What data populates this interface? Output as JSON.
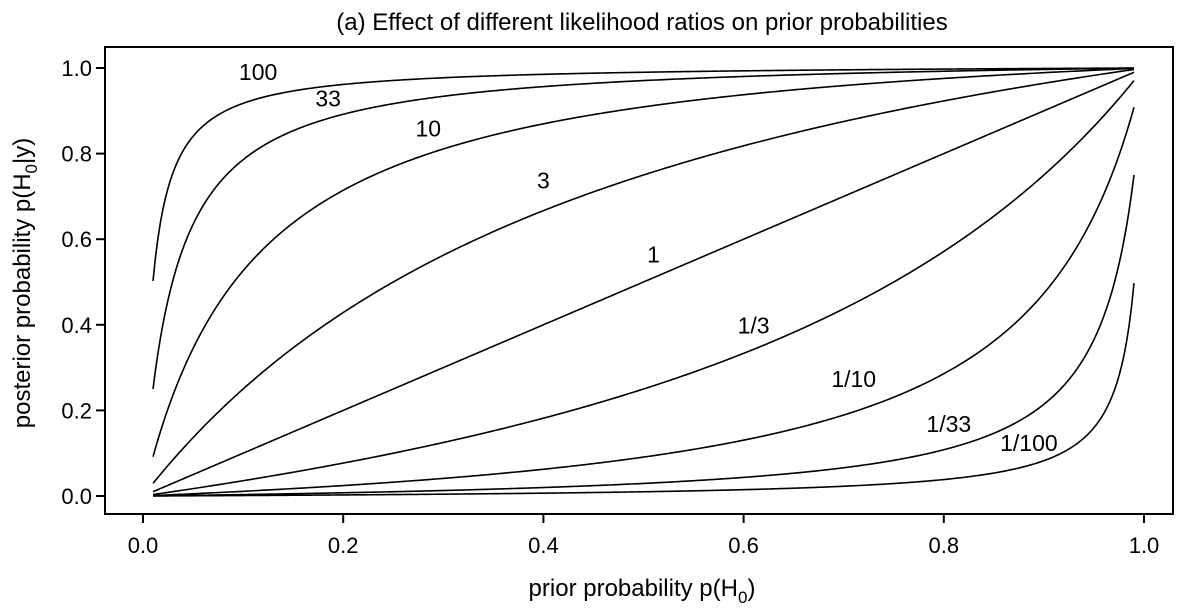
{
  "chart_data": {
    "type": "line",
    "title": "(a) Effect of different likelihood ratios on prior probabilities",
    "xlabel": {
      "main": "prior probability p(H",
      "sub": "0",
      "end": ")"
    },
    "ylabel": {
      "main": "posterior probability p(H",
      "sub": "0",
      "end": "|y)"
    },
    "xlim": [
      0.0,
      1.0
    ],
    "ylim": [
      0.0,
      1.0
    ],
    "x_ticks": [
      0.0,
      0.2,
      0.4,
      0.6,
      0.8,
      1.0
    ],
    "x_tick_labels": [
      "0.0",
      "0.2",
      "0.4",
      "0.6",
      "0.8",
      "1.0"
    ],
    "y_ticks": [
      0.0,
      0.2,
      0.4,
      0.6,
      0.8,
      1.0
    ],
    "y_tick_labels": [
      "0.0",
      "0.2",
      "0.4",
      "0.6",
      "0.8",
      "1.0"
    ],
    "x_range": [
      0.01,
      0.99
    ],
    "grid": false,
    "series": [
      {
        "name": "100",
        "ratio": 100,
        "label_at": [
          0.115,
          0.972
        ]
      },
      {
        "name": "33",
        "ratio": 33,
        "label_at": [
          0.185,
          0.91
        ]
      },
      {
        "name": "10",
        "ratio": 10,
        "label_at": [
          0.285,
          0.84
        ]
      },
      {
        "name": "3",
        "ratio": 3,
        "label_at": [
          0.4,
          0.718
        ]
      },
      {
        "name": "1",
        "ratio": 1,
        "label_at": [
          0.51,
          0.545
        ]
      },
      {
        "name": "1/3",
        "ratio": 0.3333,
        "label_at": [
          0.61,
          0.38
        ]
      },
      {
        "name": "1/10",
        "ratio": 0.1,
        "label_at": [
          0.71,
          0.255
        ]
      },
      {
        "name": "1/33",
        "ratio": 0.0303,
        "label_at": [
          0.805,
          0.15
        ]
      },
      {
        "name": "1/100",
        "ratio": 0.01,
        "label_at": [
          0.885,
          0.105
        ]
      }
    ]
  }
}
